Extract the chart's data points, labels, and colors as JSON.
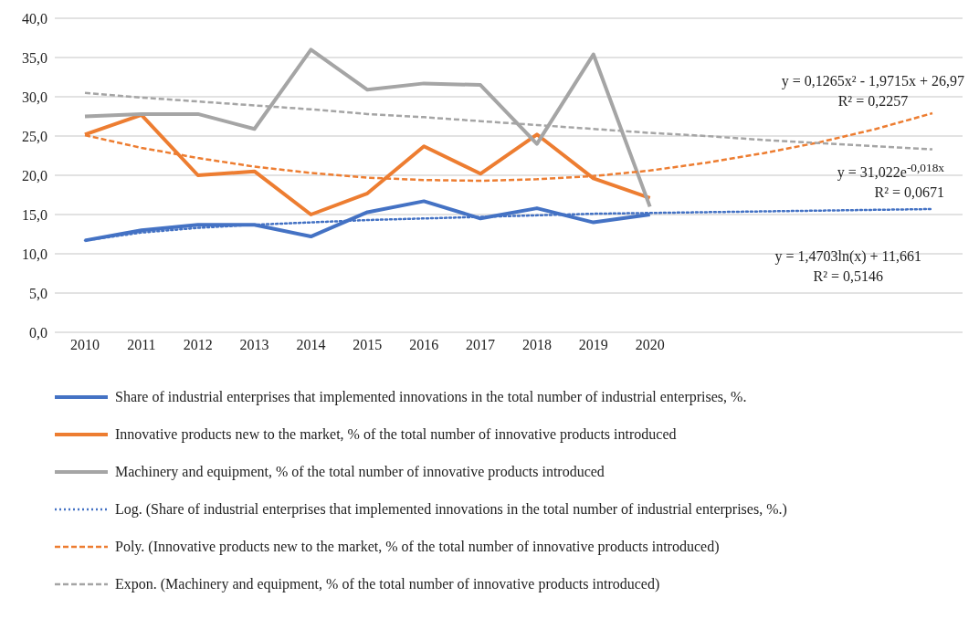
{
  "chart_data": {
    "type": "line",
    "categories": [
      "2010",
      "2011",
      "2012",
      "2013",
      "2014",
      "2015",
      "2016",
      "2017",
      "2018",
      "2019",
      "2020",
      null,
      null,
      null,
      null,
      null
    ],
    "series": [
      {
        "name": "Share of industrial enterprises that implemented innovations in the total number of industrial enterprises, %.",
        "color": "#4472c4",
        "line_style": "solid",
        "values": [
          11.7,
          13.0,
          13.7,
          13.7,
          12.2,
          15.3,
          16.7,
          14.5,
          15.8,
          14.0,
          15.0,
          null,
          null,
          null,
          null,
          null
        ]
      },
      {
        "name": "Innovative products new to the market, % of the total number of innovative products introduced",
        "color": "#ed7d31",
        "line_style": "solid",
        "values": [
          25.2,
          27.7,
          20.0,
          20.5,
          15.0,
          17.7,
          23.7,
          20.2,
          25.2,
          19.6,
          17.1,
          null,
          null,
          null,
          null,
          null
        ]
      },
      {
        "name": "Machinery and equipment, % of the total number of innovative products introduced",
        "color": "#a5a5a5",
        "line_style": "solid",
        "values": [
          27.5,
          27.8,
          27.8,
          25.9,
          36.0,
          30.9,
          31.7,
          31.5,
          24.0,
          35.4,
          16.0,
          null,
          null,
          null,
          null,
          null
        ]
      },
      {
        "name": "Log. (Share of industrial enterprises that implemented innovations in the total number of industrial enterprises, %.)",
        "color": "#4472c4",
        "line_style": "dotted",
        "values": [
          11.7,
          12.7,
          13.3,
          13.7,
          14.0,
          14.3,
          14.5,
          14.7,
          14.9,
          15.1,
          15.2,
          15.3,
          15.4,
          15.5,
          15.6,
          15.7
        ]
      },
      {
        "name": "Poly. (Innovative products new to the market, % of the total number of innovative products introduced)",
        "color": "#ed7d31",
        "line_style": "dashed",
        "values": [
          25.1,
          23.5,
          22.2,
          21.1,
          20.3,
          19.7,
          19.4,
          19.3,
          19.5,
          19.9,
          20.6,
          21.6,
          22.8,
          24.2,
          25.9,
          27.9
        ]
      },
      {
        "name": "Expon. (Machinery and equipment, % of the total number of innovative products introduced)",
        "color": "#a5a5a5",
        "line_style": "dashed",
        "values": [
          30.5,
          29.9,
          29.4,
          28.9,
          28.4,
          27.8,
          27.4,
          26.9,
          26.4,
          25.9,
          25.4,
          25.0,
          24.5,
          24.1,
          23.7,
          23.3
        ]
      }
    ],
    "ylim": [
      0,
      40
    ],
    "yticks": [
      {
        "value": 0,
        "label": "0,0"
      },
      {
        "value": 5,
        "label": "5,0"
      },
      {
        "value": 10,
        "label": "10,0"
      },
      {
        "value": 15,
        "label": "15,0"
      },
      {
        "value": 20,
        "label": "20,0"
      },
      {
        "value": 25,
        "label": "25,0"
      },
      {
        "value": 30,
        "label": "30,0"
      },
      {
        "value": 35,
        "label": "35,0"
      },
      {
        "value": 40,
        "label": "40,0"
      }
    ],
    "grid": "y",
    "legend": "bottom",
    "marker": "none",
    "annotations": [
      "y = 0,1265x² - 1,9715x + 26,97\nR² = 0,2257",
      "y = 31,022e$^{-0,018x}$\nR² = 0,0671",
      "y = 1,4703ln(x) + 11,661\nR² = 0,5146"
    ]
  }
}
